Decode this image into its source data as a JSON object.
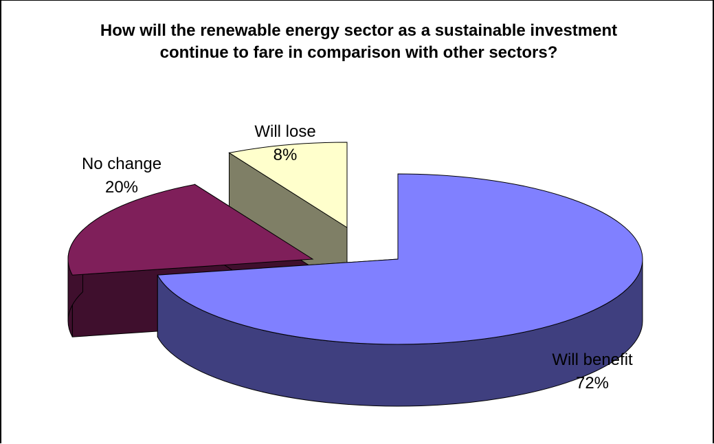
{
  "chart_data": {
    "type": "pie",
    "title": "How will the renewable energy sector as a sustainable investment continue to fare in comparison with other sectors?",
    "categories": [
      "Will benefit",
      "No change",
      "Will lose"
    ],
    "values": [
      72,
      20,
      8
    ],
    "value_labels": [
      "72%",
      "20%",
      "8%"
    ],
    "style": "3d-exploded",
    "legend": "none",
    "colors": {
      "top": [
        "#8080ff",
        "#7f1f5a",
        "#ffffcc"
      ],
      "side": [
        "#3f3f7f",
        "#3f0f2d",
        "#7f7f66"
      ]
    }
  }
}
